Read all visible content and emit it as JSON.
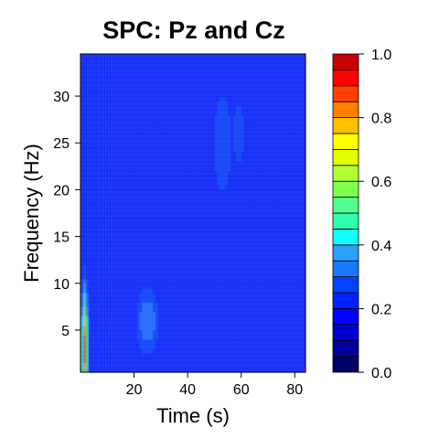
{
  "chart_data": {
    "type": "heatmap",
    "title": "SPC: Pz and Cz",
    "xlabel": "Time (s)",
    "ylabel": "Frequency (Hz)",
    "xlim": [
      0,
      84
    ],
    "ylim": [
      0.5,
      34.5
    ],
    "x_ticks": [
      20,
      40,
      60,
      80
    ],
    "y_ticks": [
      5,
      10,
      15,
      20,
      25,
      30
    ],
    "colorbar": {
      "min": 0.0,
      "max": 1.0,
      "ticks": [
        "0.0",
        "0.2",
        "0.4",
        "0.6",
        "0.8",
        "1.0"
      ],
      "levels": 20,
      "colors": [
        "#000066",
        "#00009a",
        "#0000cc",
        "#0000ff",
        "#0022ff",
        "#0044ff",
        "#1a78ff",
        "#2aa0ff",
        "#10ffff",
        "#30ffb0",
        "#50ff90",
        "#80ff50",
        "#b0ff30",
        "#e0ff00",
        "#ffff00",
        "#ffc000",
        "#ff8000",
        "#ff4000",
        "#ff0000",
        "#c80000"
      ]
    },
    "background_level": 0.2,
    "features": [
      {
        "x": 25,
        "y": 6,
        "peak": 0.35,
        "sx": 3,
        "sy": 2.4
      },
      {
        "x": 53,
        "y": 25,
        "peak": 0.3,
        "sx": 2.6,
        "sy": 4.5
      },
      {
        "x": 59,
        "y": 26,
        "peak": 0.28,
        "sx": 2.2,
        "sy": 3.2
      },
      {
        "x": 55,
        "y": 17,
        "peak": 0.24,
        "sx": 4,
        "sy": 4
      },
      {
        "x": 50,
        "y": 5,
        "peak": 0.23,
        "sx": 6,
        "sy": 4
      },
      {
        "x": 1.5,
        "y": 3,
        "peak": 0.85,
        "sx": 0.8,
        "sy": 4
      }
    ]
  }
}
